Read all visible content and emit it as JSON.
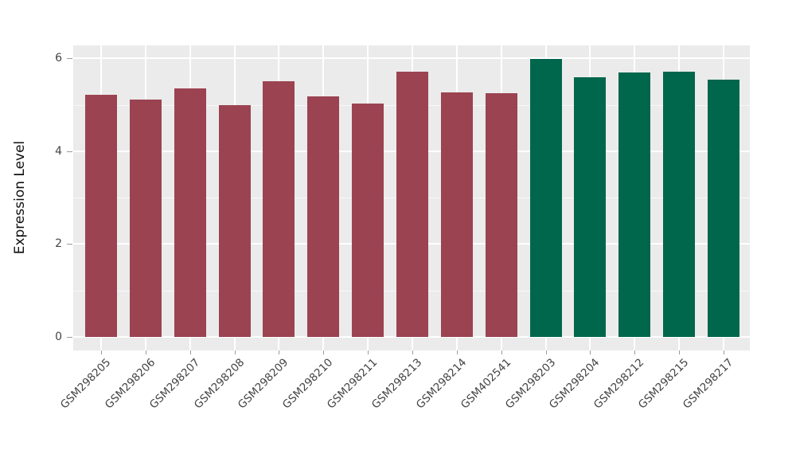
{
  "figure": {
    "background": "#FFFFFF",
    "plot_background": "#EBEBEB",
    "gridline_color": "#FFFFFF",
    "tick_mark_color": "#9B9B9B",
    "tick_label_color": "#444444",
    "axis_title_color": "#111111"
  },
  "chart_data": {
    "type": "bar",
    "title": "",
    "xlabel": "",
    "ylabel": "Expression Level",
    "ylim": [
      0,
      6.3
    ],
    "yticks": [
      0,
      2,
      4,
      6
    ],
    "minor_yticks": [
      1,
      3,
      5
    ],
    "grid": "horizontal major+minor white lines, vertical white lines at bar centers",
    "legend": "none",
    "categories": [
      "GSM298205",
      "GSM298206",
      "GSM298207",
      "GSM298208",
      "GSM298209",
      "GSM298210",
      "GSM298211",
      "GSM298213",
      "GSM298214",
      "GSM402541",
      "GSM298203",
      "GSM298204",
      "GSM298212",
      "GSM298215",
      "GSM298217"
    ],
    "series": [
      {
        "name": "Expression Level",
        "values": [
          5.21,
          5.11,
          5.36,
          4.99,
          5.51,
          5.19,
          5.03,
          5.72,
          5.27,
          5.25,
          5.99,
          5.59,
          5.7,
          5.72,
          5.54
        ]
      }
    ],
    "bar_groups": [
      0,
      0,
      0,
      0,
      0,
      0,
      0,
      0,
      0,
      0,
      1,
      1,
      1,
      1,
      1
    ],
    "group_colors": [
      "#9B4351",
      "#00664C"
    ]
  }
}
